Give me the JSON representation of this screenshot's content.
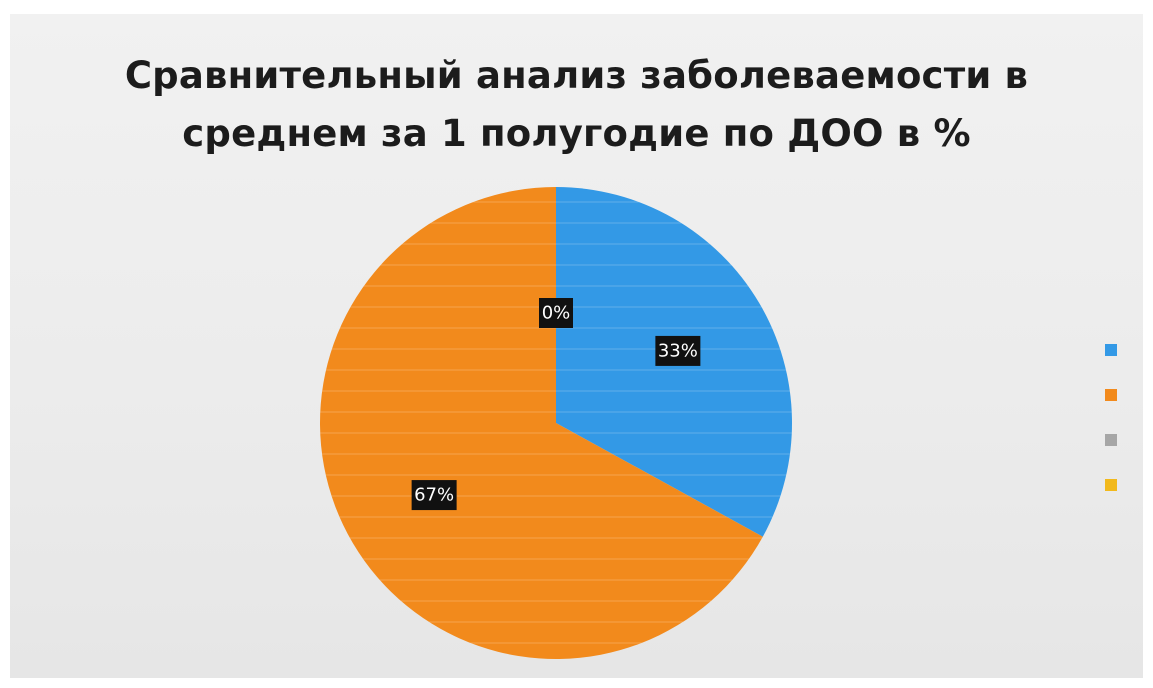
{
  "chart_data": {
    "type": "pie",
    "title_lines": [
      "Сравнительный анализ заболеваемости в",
      "среднем за 1 полугодие по ДОО в %"
    ],
    "series": [
      {
        "values": [
          33,
          67,
          0,
          0
        ]
      }
    ],
    "data_labels": [
      "33%",
      "67%",
      "0%",
      ""
    ],
    "colors": [
      "#3399e6",
      "#f28a1c",
      "#a6a6a6",
      "#f2b91c"
    ],
    "legend_position": "right"
  }
}
